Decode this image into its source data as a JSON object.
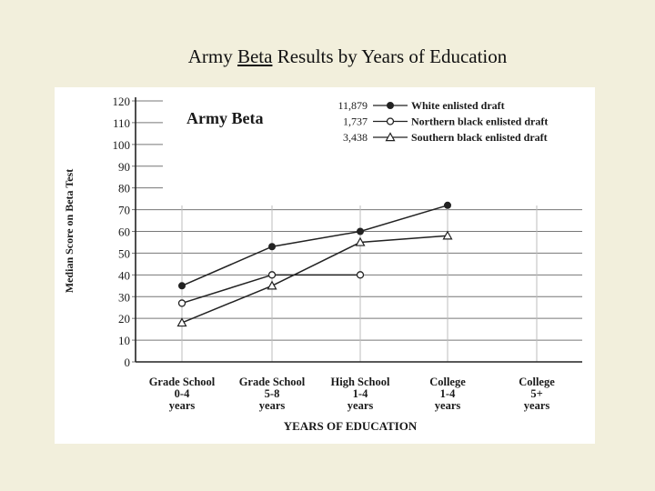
{
  "slide": {
    "title_prefix": "Army ",
    "title_underlined": "Beta",
    "title_suffix": " Results by Years of Education"
  },
  "chart_data": {
    "type": "line",
    "title": "Army Beta",
    "ylabel": "Median Score on Beta Test",
    "xlabel": "YEARS OF EDUCATION",
    "ylim": [
      0,
      120
    ],
    "yticks": [
      0,
      10,
      20,
      30,
      40,
      50,
      60,
      70,
      80,
      90,
      100,
      110,
      120
    ],
    "grid": "horizontal",
    "legend_position": "top-right",
    "categories": [
      [
        "Grade School",
        "0-4",
        "years"
      ],
      [
        "Grade School",
        "5-8",
        "years"
      ],
      [
        "High School",
        "1-4",
        "years"
      ],
      [
        "College",
        "1-4",
        "years"
      ],
      [
        "College",
        "5+",
        "years"
      ]
    ],
    "series": [
      {
        "name": "White enlisted draft",
        "count": "11,879",
        "marker": "filled-circle",
        "values": [
          35,
          53,
          60,
          72,
          null
        ]
      },
      {
        "name": "Northern black enlisted draft",
        "count": "1,737",
        "marker": "open-circle",
        "values": [
          27,
          40,
          40,
          null,
          null
        ]
      },
      {
        "name": "Southern black enlisted draft",
        "count": "3,438",
        "marker": "open-triangle",
        "values": [
          18,
          35,
          55,
          58,
          null
        ]
      }
    ]
  }
}
